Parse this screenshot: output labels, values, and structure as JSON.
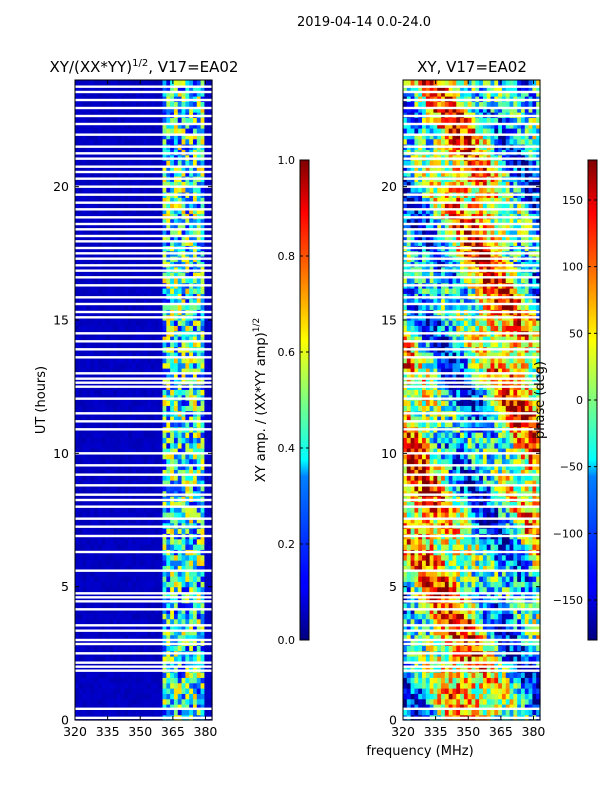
{
  "figure": {
    "suptitle": "2019-04-14 0.0-24.0",
    "xlabel": "frequency (MHz)"
  },
  "chart_data": [
    {
      "type": "heatmap",
      "title_main": "XY/(XX*YY)",
      "title_sup": "1/2",
      "title_rest": ", V17=EA02",
      "xlabel": "",
      "ylabel": "UT (hours)",
      "xlim": [
        320,
        383
      ],
      "ylim": [
        0,
        24
      ],
      "xticks": [
        "320",
        "335",
        "350",
        "365",
        "380"
      ],
      "xtick_values": [
        320,
        335,
        350,
        365,
        380
      ],
      "yticks": [
        "0",
        "5",
        "10",
        "15",
        "20"
      ],
      "ytick_values": [
        0,
        5,
        10,
        15,
        20
      ],
      "colorbar": {
        "label_main": "XY amp. / (XX*YY amp)",
        "label_sup": "1/2",
        "range": [
          0.0,
          1.0
        ],
        "ticks": [
          "0.0",
          "0.2",
          "0.4",
          "0.6",
          "0.8",
          "1.0"
        ],
        "tick_values": [
          0.0,
          0.2,
          0.4,
          0.6,
          0.8,
          1.0
        ]
      },
      "active_band_mhz": [
        361,
        380
      ],
      "quiet_value": 0.05,
      "active_value_range": [
        0.1,
        0.7
      ]
    },
    {
      "type": "heatmap",
      "title_main": "XY, V17=EA02",
      "title_sup": "",
      "title_rest": "",
      "xlabel": "frequency (MHz)",
      "ylabel": "",
      "xlim": [
        320,
        383
      ],
      "ylim": [
        0,
        24
      ],
      "xticks": [
        "320",
        "335",
        "350",
        "365",
        "380"
      ],
      "xtick_values": [
        320,
        335,
        350,
        365,
        380
      ],
      "yticks": [
        "0",
        "5",
        "10",
        "15",
        "20"
      ],
      "ytick_values": [
        0,
        5,
        10,
        15,
        20
      ],
      "colorbar": {
        "label_main": "phase (deg)",
        "label_sup": "",
        "range": [
          -180,
          180
        ],
        "ticks": [
          "−150",
          "−100",
          "−50",
          "0",
          "50",
          "100",
          "150"
        ],
        "tick_values": [
          -150,
          -100,
          -50,
          0,
          50,
          100,
          150
        ]
      }
    }
  ],
  "flagged_hours": [
    0.08,
    0.42,
    1.85,
    2.0,
    2.15,
    2.5,
    2.85,
    3.0,
    3.35,
    3.55,
    4.15,
    4.45,
    4.6,
    4.75,
    5.6,
    6.3,
    6.9,
    7.25,
    7.55,
    8.0,
    8.25,
    8.45,
    8.8,
    9.2,
    9.55,
    10.0,
    10.9,
    11.2,
    11.5,
    12.05,
    12.5,
    12.65,
    12.8,
    13.0,
    13.6,
    13.9,
    14.2,
    14.5,
    15.1,
    15.3,
    15.6,
    15.85,
    16.3,
    16.6,
    16.85,
    17.05,
    17.3,
    17.5,
    17.7,
    17.95,
    18.15,
    18.4,
    18.6,
    18.85,
    19.15,
    19.4,
    19.7,
    20.0,
    20.3,
    20.55,
    20.75,
    21.05,
    21.25,
    21.5,
    21.95,
    22.35,
    22.65,
    22.95,
    23.25,
    23.55,
    23.75
  ]
}
